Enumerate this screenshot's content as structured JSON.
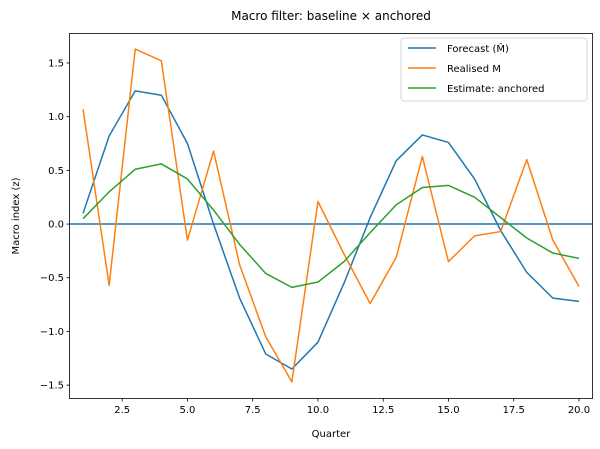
{
  "chart_data": {
    "type": "line",
    "title": "Macro filter: baseline × anchored",
    "xlabel": "Quarter",
    "ylabel": "Macro index (z)",
    "xlim": [
      0.5,
      20.5
    ],
    "ylim": [
      -1.62,
      1.77
    ],
    "x_ticks": [
      2.5,
      5.0,
      7.5,
      10.0,
      12.5,
      15.0,
      17.5,
      20.0
    ],
    "x_tick_labels": [
      "2.5",
      "5.0",
      "7.5",
      "10.0",
      "12.5",
      "15.0",
      "17.5",
      "20.0"
    ],
    "y_ticks": [
      -1.5,
      -1.0,
      -0.5,
      0.0,
      0.5,
      1.0,
      1.5
    ],
    "y_tick_labels": [
      "−1.5",
      "−1.0",
      "−0.5",
      "0.0",
      "0.5",
      "1.0",
      "1.5"
    ],
    "grid": false,
    "legend_position": "top-right",
    "x": [
      1,
      2,
      3,
      4,
      5,
      6,
      7,
      8,
      9,
      10,
      11,
      12,
      13,
      14,
      15,
      16,
      17,
      18,
      19,
      20
    ],
    "series": [
      {
        "name": "Forecast (M̂)",
        "color": "#1f77b4",
        "values": [
          0.1,
          0.82,
          1.24,
          1.2,
          0.75,
          0.0,
          -0.69,
          -1.21,
          -1.35,
          -1.1,
          -0.55,
          0.06,
          0.59,
          0.83,
          0.76,
          0.42,
          -0.06,
          -0.45,
          -0.69,
          -0.72
        ]
      },
      {
        "name": "Realised M",
        "color": "#ff7f0e",
        "values": [
          1.07,
          -0.57,
          1.63,
          1.52,
          -0.15,
          0.68,
          -0.38,
          -1.05,
          -1.47,
          0.21,
          -0.28,
          -0.74,
          -0.31,
          0.63,
          -0.35,
          -0.11,
          -0.07,
          0.6,
          -0.15,
          -0.58
        ]
      },
      {
        "name": "Estimate: anchored",
        "color": "#2ca02c",
        "values": [
          0.05,
          0.3,
          0.51,
          0.56,
          0.42,
          0.13,
          -0.19,
          -0.46,
          -0.59,
          -0.54,
          -0.35,
          -0.08,
          0.18,
          0.34,
          0.36,
          0.25,
          0.06,
          -0.13,
          -0.27,
          -0.32
        ]
      }
    ],
    "reference_line": {
      "y": 0.0,
      "color": "#1f77b4"
    }
  }
}
